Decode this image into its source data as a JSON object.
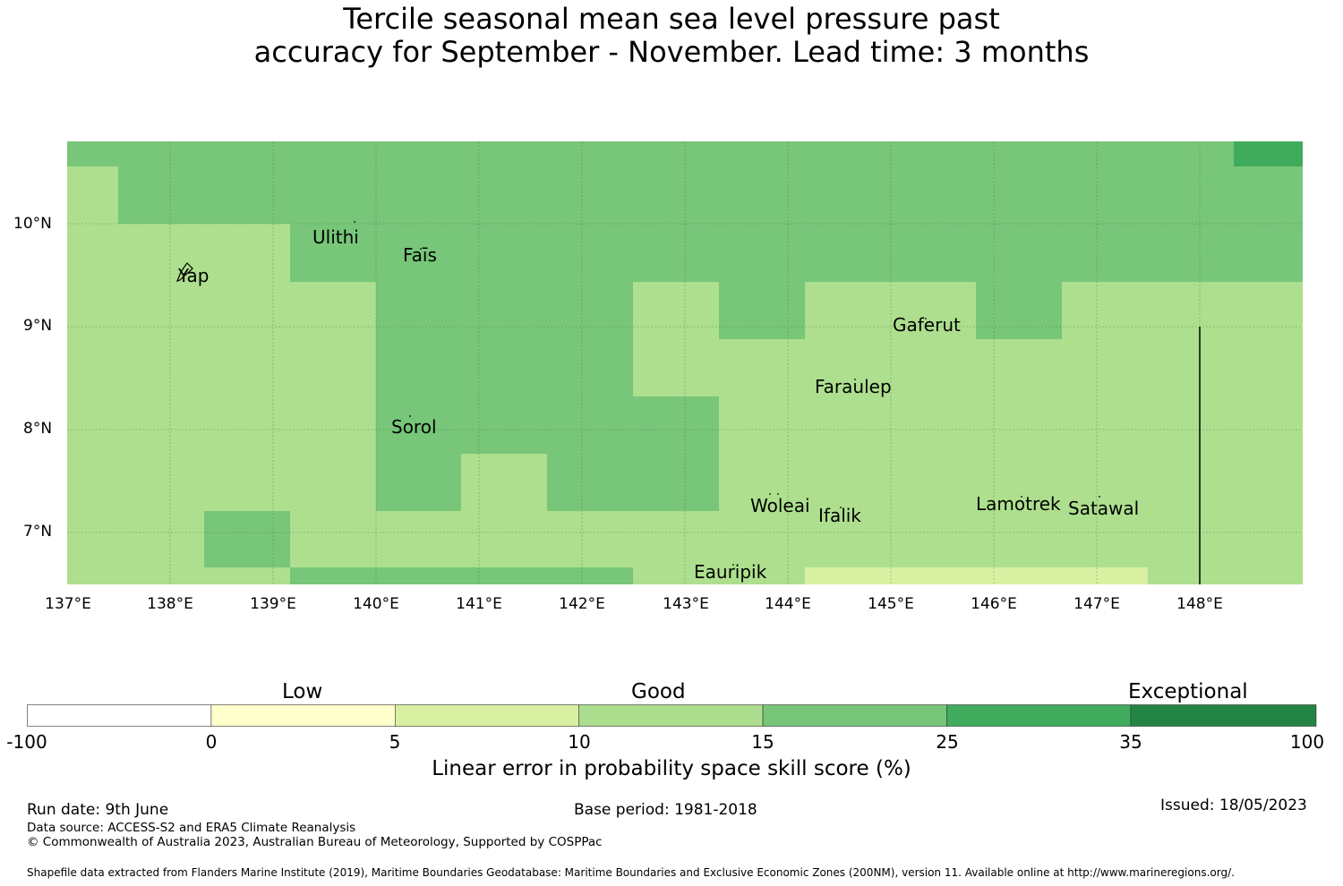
{
  "title": {
    "line1": "Tercile seasonal mean sea level pressure past",
    "line2": "accuracy for September - November. Lead time: 3 months"
  },
  "map": {
    "lon_range": [
      137.0,
      149.0
    ],
    "lat_range": [
      6.5,
      10.8
    ],
    "x_ticks": [
      "137°E",
      "138°E",
      "139°E",
      "140°E",
      "141°E",
      "142°E",
      "143°E",
      "144°E",
      "145°E",
      "146°E",
      "147°E",
      "148°E"
    ],
    "y_ticks": [
      "10°N",
      "9°N",
      "8°N",
      "7°N"
    ],
    "places": [
      {
        "name": "Ulithi",
        "lon": 139.4,
        "lat": 9.83
      },
      {
        "name": "Faīs",
        "lon": 140.25,
        "lat": 9.65
      },
      {
        "name": "Yap",
        "lon": 138.07,
        "lat": 9.48
      },
      {
        "name": "Gaferut",
        "lon": 145.0,
        "lat": 8.97
      },
      {
        "name": "Faraulep",
        "lon": 144.26,
        "lat": 8.37
      },
      {
        "name": "Sorol",
        "lon": 140.15,
        "lat": 7.98
      },
      {
        "name": "Woleai",
        "lon": 143.63,
        "lat": 7.23
      },
      {
        "name": "Ifalik",
        "lon": 144.3,
        "lat": 7.13
      },
      {
        "name": "Lamotrek",
        "lon": 145.85,
        "lat": 7.25
      },
      {
        "name": "Satawal",
        "lon": 146.82,
        "lat": 7.2
      },
      {
        "name": "Eauripik",
        "lon": 143.1,
        "lat": 6.61
      }
    ],
    "boundary_line_lon": 148.0,
    "colors": {
      "c10_15": "#addf8e",
      "c15_25": "#78c679",
      "c25_35": "#41ab5d",
      "c5_10": "#d9f0a3"
    }
  },
  "colorbar": {
    "labels": {
      "low": "Low",
      "good": "Good",
      "exceptional": "Exceptional"
    },
    "ticks": [
      "-100",
      "0",
      "5",
      "10",
      "15",
      "25",
      "35",
      "100"
    ],
    "colors": [
      "#ffffff",
      "#ffffcc",
      "#d9f0a3",
      "#addd8e",
      "#78c679",
      "#41ab5d",
      "#238443"
    ],
    "title": "Linear error in probability space skill score (%)"
  },
  "footer": {
    "run_date": "Run date: 9th June",
    "base_period": "Base period: 1981-2018",
    "issued": "Issued: 18/05/2023",
    "data_source": "Data source: ACCESS-S2 and ERA5 Climate Reanalysis",
    "copyright": "© Commonwealth of Australia 2023, Australian Bureau of Meteorology, Supported by COSPPac",
    "shapefile": "Shapefile data extracted from Flanders Marine Institute (2019), Maritime Boundaries Geodatabase: Maritime Boundaries and Exclusive Economic Zones (200NM), version 11. Available online at http://www.marineregions.org/."
  }
}
